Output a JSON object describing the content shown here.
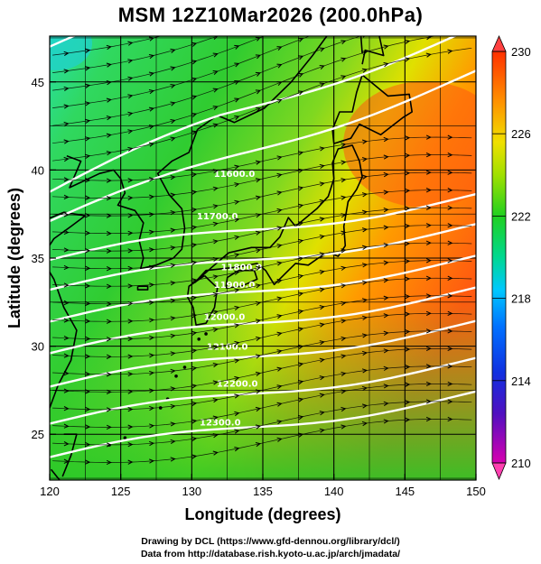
{
  "title": "MSM 12Z10Mar2026 (200.0hPa)",
  "credit": {
    "line1": "Drawing by DCL (https://www.gfd-dennou.org/library/dcl/)",
    "line2": "Data from http://database.rish.kyoto-u.ac.jp/arch/jmadata/"
  },
  "chart_data": {
    "type": "heatmap",
    "xlabel": "Longitude (degrees)",
    "ylabel": "Latitude  (degrees)",
    "xlim": [
      120,
      150
    ],
    "ylim": [
      22.4,
      47.6
    ],
    "xticks": [
      120,
      125,
      130,
      135,
      140,
      145,
      150
    ],
    "yticks": [
      25,
      30,
      35,
      40,
      45
    ],
    "colorbar": {
      "range": [
        210,
        230
      ],
      "tick_labels": [
        210,
        214,
        218,
        222,
        226,
        230
      ],
      "colors": [
        "#d800b0",
        "#3000c0",
        "#0040ff",
        "#00c8ff",
        "#00e070",
        "#20d020",
        "#a0e000",
        "#f0e000",
        "#ff9000",
        "#ff3000"
      ]
    },
    "contour_labels": [
      "11600.0",
      "11700.0",
      "11800.0",
      "11900.0",
      "12000.0",
      "12100.0",
      "12200.0",
      "12300.0"
    ],
    "contour_label_positions": [
      {
        "label": "11600.0",
        "lon": 133.0,
        "lat": 39.6
      },
      {
        "label": "11700.0",
        "lon": 131.8,
        "lat": 37.2
      },
      {
        "label": "11800.0",
        "lon": 133.5,
        "lat": 34.3
      },
      {
        "label": "11900.0",
        "lon": 133.0,
        "lat": 33.3
      },
      {
        "label": "12000.0",
        "lon": 132.3,
        "lat": 31.5
      },
      {
        "label": "12100.0",
        "lon": 132.5,
        "lat": 29.8
      },
      {
        "label": "12200.0",
        "lon": 133.2,
        "lat": 27.7
      },
      {
        "label": "12300.0",
        "lon": 132.0,
        "lat": 25.5
      }
    ],
    "field": "temperature (K), geopotential height contours (m), wind vectors",
    "grid": true
  }
}
